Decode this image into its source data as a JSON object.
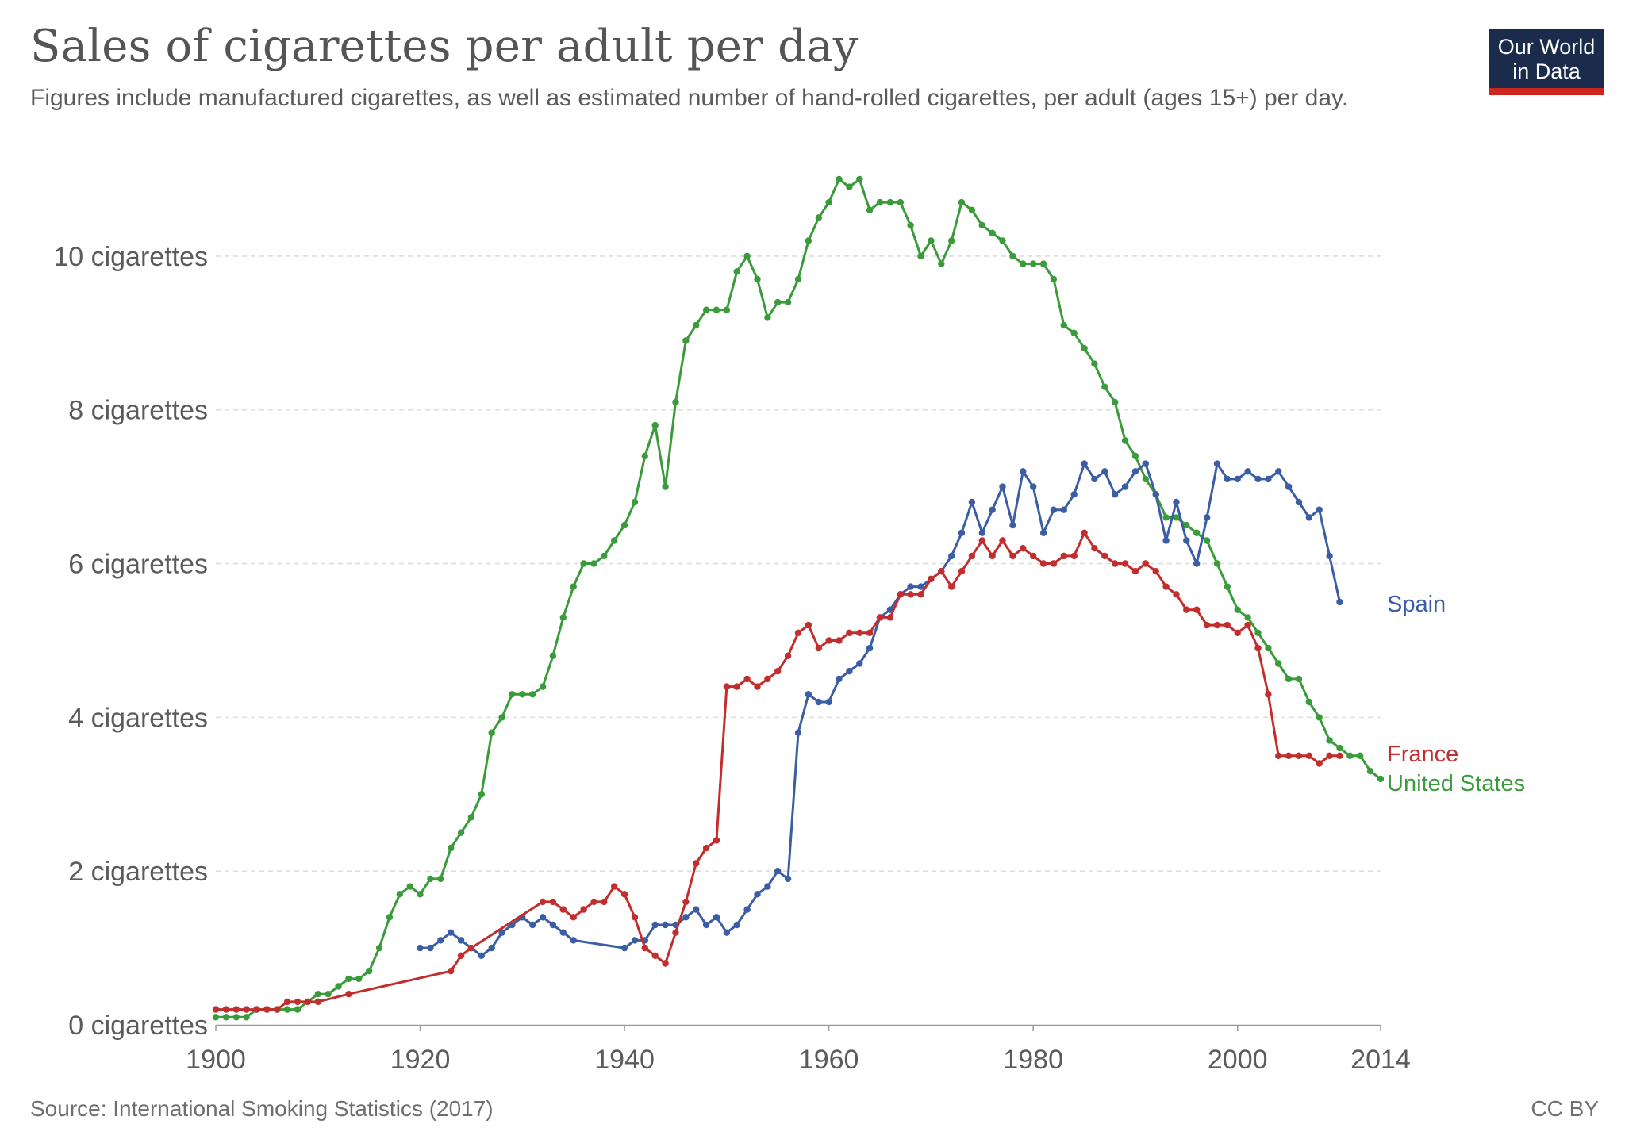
{
  "header": {
    "title": "Sales of cigarettes per adult per day",
    "subtitle": "Figures include manufactured cigarettes, as well as estimated number of hand-rolled cigarettes, per adult (ages 15+) per day."
  },
  "logo": {
    "line1": "Our World",
    "line2": "in Data"
  },
  "footer": {
    "source": "Source: International Smoking Statistics (2017)",
    "license": "CC BY"
  },
  "chart_data": {
    "type": "line",
    "title": "Sales of cigarettes per adult per day",
    "xlim": [
      1900,
      2014
    ],
    "ylim": [
      0,
      11
    ],
    "x_ticks": [
      1900,
      1920,
      1940,
      1960,
      1980,
      2000,
      2014
    ],
    "y_ticks": [
      {
        "value": 0,
        "label": "0 cigarettes"
      },
      {
        "value": 2,
        "label": "2 cigarettes"
      },
      {
        "value": 4,
        "label": "4 cigarettes"
      },
      {
        "value": 6,
        "label": "6 cigarettes"
      },
      {
        "value": 8,
        "label": "8 cigarettes"
      },
      {
        "value": 10,
        "label": "10 cigarettes"
      }
    ],
    "grid": "horizontal dashed",
    "legend": "direct labels at line ends (right)",
    "series": [
      {
        "name": "United States",
        "color": "#3a9b3a",
        "points": [
          [
            1900,
            0.1
          ],
          [
            1901,
            0.1
          ],
          [
            1902,
            0.1
          ],
          [
            1903,
            0.1
          ],
          [
            1904,
            0.2
          ],
          [
            1905,
            0.2
          ],
          [
            1906,
            0.2
          ],
          [
            1907,
            0.2
          ],
          [
            1908,
            0.2
          ],
          [
            1909,
            0.3
          ],
          [
            1910,
            0.4
          ],
          [
            1911,
            0.4
          ],
          [
            1912,
            0.5
          ],
          [
            1913,
            0.6
          ],
          [
            1914,
            0.6
          ],
          [
            1915,
            0.7
          ],
          [
            1916,
            1.0
          ],
          [
            1917,
            1.4
          ],
          [
            1918,
            1.7
          ],
          [
            1919,
            1.8
          ],
          [
            1920,
            1.7
          ],
          [
            1921,
            1.9
          ],
          [
            1922,
            1.9
          ],
          [
            1923,
            2.3
          ],
          [
            1924,
            2.5
          ],
          [
            1925,
            2.7
          ],
          [
            1926,
            3.0
          ],
          [
            1927,
            3.8
          ],
          [
            1928,
            4.0
          ],
          [
            1929,
            4.3
          ],
          [
            1930,
            4.3
          ],
          [
            1931,
            4.3
          ],
          [
            1932,
            4.4
          ],
          [
            1933,
            4.8
          ],
          [
            1934,
            5.3
          ],
          [
            1935,
            5.7
          ],
          [
            1936,
            6.0
          ],
          [
            1937,
            6.0
          ],
          [
            1938,
            6.1
          ],
          [
            1939,
            6.3
          ],
          [
            1940,
            6.5
          ],
          [
            1941,
            6.8
          ],
          [
            1942,
            7.4
          ],
          [
            1943,
            7.8
          ],
          [
            1944,
            7.0
          ],
          [
            1945,
            8.1
          ],
          [
            1946,
            8.9
          ],
          [
            1947,
            9.1
          ],
          [
            1948,
            9.3
          ],
          [
            1949,
            9.3
          ],
          [
            1950,
            9.3
          ],
          [
            1951,
            9.8
          ],
          [
            1952,
            10.0
          ],
          [
            1953,
            9.7
          ],
          [
            1954,
            9.2
          ],
          [
            1955,
            9.4
          ],
          [
            1956,
            9.4
          ],
          [
            1957,
            9.7
          ],
          [
            1958,
            10.2
          ],
          [
            1959,
            10.5
          ],
          [
            1960,
            10.7
          ],
          [
            1961,
            11.0
          ],
          [
            1962,
            10.9
          ],
          [
            1963,
            11.0
          ],
          [
            1964,
            10.6
          ],
          [
            1965,
            10.7
          ],
          [
            1966,
            10.7
          ],
          [
            1967,
            10.7
          ],
          [
            1968,
            10.4
          ],
          [
            1969,
            10.0
          ],
          [
            1970,
            10.2
          ],
          [
            1971,
            9.9
          ],
          [
            1972,
            10.2
          ],
          [
            1973,
            10.7
          ],
          [
            1974,
            10.6
          ],
          [
            1975,
            10.4
          ],
          [
            1976,
            10.3
          ],
          [
            1977,
            10.2
          ],
          [
            1978,
            10.0
          ],
          [
            1979,
            9.9
          ],
          [
            1980,
            9.9
          ],
          [
            1981,
            9.9
          ],
          [
            1982,
            9.7
          ],
          [
            1983,
            9.1
          ],
          [
            1984,
            9.0
          ],
          [
            1985,
            8.8
          ],
          [
            1986,
            8.6
          ],
          [
            1987,
            8.3
          ],
          [
            1988,
            8.1
          ],
          [
            1989,
            7.6
          ],
          [
            1990,
            7.4
          ],
          [
            1991,
            7.1
          ],
          [
            1992,
            6.9
          ],
          [
            1993,
            6.6
          ],
          [
            1994,
            6.6
          ],
          [
            1995,
            6.5
          ],
          [
            1996,
            6.4
          ],
          [
            1997,
            6.3
          ],
          [
            1998,
            6.0
          ],
          [
            1999,
            5.7
          ],
          [
            2000,
            5.4
          ],
          [
            2001,
            5.3
          ],
          [
            2002,
            5.1
          ],
          [
            2003,
            4.9
          ],
          [
            2004,
            4.7
          ],
          [
            2005,
            4.5
          ],
          [
            2006,
            4.5
          ],
          [
            2007,
            4.2
          ],
          [
            2008,
            4.0
          ],
          [
            2009,
            3.7
          ],
          [
            2010,
            3.6
          ],
          [
            2011,
            3.5
          ],
          [
            2012,
            3.5
          ],
          [
            2013,
            3.3
          ],
          [
            2014,
            3.2
          ]
        ]
      },
      {
        "name": "Spain",
        "color": "#3a5da4",
        "points": [
          [
            1920,
            1.0
          ],
          [
            1921,
            1.0
          ],
          [
            1922,
            1.1
          ],
          [
            1923,
            1.2
          ],
          [
            1924,
            1.1
          ],
          [
            1925,
            1.0
          ],
          [
            1926,
            0.9
          ],
          [
            1927,
            1.0
          ],
          [
            1928,
            1.2
          ],
          [
            1929,
            1.3
          ],
          [
            1930,
            1.4
          ],
          [
            1931,
            1.3
          ],
          [
            1932,
            1.4
          ],
          [
            1933,
            1.3
          ],
          [
            1934,
            1.2
          ],
          [
            1935,
            1.1
          ],
          [
            1940,
            1.0
          ],
          [
            1941,
            1.1
          ],
          [
            1942,
            1.1
          ],
          [
            1943,
            1.3
          ],
          [
            1944,
            1.3
          ],
          [
            1945,
            1.3
          ],
          [
            1946,
            1.4
          ],
          [
            1947,
            1.5
          ],
          [
            1948,
            1.3
          ],
          [
            1949,
            1.4
          ],
          [
            1950,
            1.2
          ],
          [
            1951,
            1.3
          ],
          [
            1952,
            1.5
          ],
          [
            1953,
            1.7
          ],
          [
            1954,
            1.8
          ],
          [
            1955,
            2.0
          ],
          [
            1956,
            1.9
          ],
          [
            1957,
            3.8
          ],
          [
            1958,
            4.3
          ],
          [
            1959,
            4.2
          ],
          [
            1960,
            4.2
          ],
          [
            1961,
            4.5
          ],
          [
            1962,
            4.6
          ],
          [
            1963,
            4.7
          ],
          [
            1964,
            4.9
          ],
          [
            1965,
            5.3
          ],
          [
            1966,
            5.4
          ],
          [
            1967,
            5.6
          ],
          [
            1968,
            5.7
          ],
          [
            1969,
            5.7
          ],
          [
            1970,
            5.8
          ],
          [
            1971,
            5.9
          ],
          [
            1972,
            6.1
          ],
          [
            1973,
            6.4
          ],
          [
            1974,
            6.8
          ],
          [
            1975,
            6.4
          ],
          [
            1976,
            6.7
          ],
          [
            1977,
            7.0
          ],
          [
            1978,
            6.5
          ],
          [
            1979,
            7.2
          ],
          [
            1980,
            7.0
          ],
          [
            1981,
            6.4
          ],
          [
            1982,
            6.7
          ],
          [
            1983,
            6.7
          ],
          [
            1984,
            6.9
          ],
          [
            1985,
            7.3
          ],
          [
            1986,
            7.1
          ],
          [
            1987,
            7.2
          ],
          [
            1988,
            6.9
          ],
          [
            1989,
            7.0
          ],
          [
            1990,
            7.2
          ],
          [
            1991,
            7.3
          ],
          [
            1992,
            6.9
          ],
          [
            1993,
            6.3
          ],
          [
            1994,
            6.8
          ],
          [
            1995,
            6.3
          ],
          [
            1996,
            6.0
          ],
          [
            1997,
            6.6
          ],
          [
            1998,
            7.3
          ],
          [
            1999,
            7.1
          ],
          [
            2000,
            7.1
          ],
          [
            2001,
            7.2
          ],
          [
            2002,
            7.1
          ],
          [
            2003,
            7.1
          ],
          [
            2004,
            7.2
          ],
          [
            2005,
            7.0
          ],
          [
            2006,
            6.8
          ],
          [
            2007,
            6.6
          ],
          [
            2008,
            6.7
          ],
          [
            2009,
            6.1
          ],
          [
            2010,
            5.5
          ]
        ]
      },
      {
        "name": "France",
        "color": "#c22d2d",
        "points": [
          [
            1900,
            0.2
          ],
          [
            1901,
            0.2
          ],
          [
            1902,
            0.2
          ],
          [
            1903,
            0.2
          ],
          [
            1904,
            0.2
          ],
          [
            1905,
            0.2
          ],
          [
            1906,
            0.2
          ],
          [
            1907,
            0.3
          ],
          [
            1908,
            0.3
          ],
          [
            1909,
            0.3
          ],
          [
            1910,
            0.3
          ],
          [
            1913,
            0.4
          ],
          [
            1923,
            0.7
          ],
          [
            1924,
            0.9
          ],
          [
            1925,
            1.0
          ],
          [
            1932,
            1.6
          ],
          [
            1933,
            1.6
          ],
          [
            1934,
            1.5
          ],
          [
            1935,
            1.4
          ],
          [
            1936,
            1.5
          ],
          [
            1937,
            1.6
          ],
          [
            1938,
            1.6
          ],
          [
            1939,
            1.8
          ],
          [
            1940,
            1.7
          ],
          [
            1941,
            1.4
          ],
          [
            1942,
            1.0
          ],
          [
            1943,
            0.9
          ],
          [
            1944,
            0.8
          ],
          [
            1945,
            1.2
          ],
          [
            1946,
            1.6
          ],
          [
            1947,
            2.1
          ],
          [
            1948,
            2.3
          ],
          [
            1949,
            2.4
          ],
          [
            1950,
            4.4
          ],
          [
            1951,
            4.4
          ],
          [
            1952,
            4.5
          ],
          [
            1953,
            4.4
          ],
          [
            1954,
            4.5
          ],
          [
            1955,
            4.6
          ],
          [
            1956,
            4.8
          ],
          [
            1957,
            5.1
          ],
          [
            1958,
            5.2
          ],
          [
            1959,
            4.9
          ],
          [
            1960,
            5.0
          ],
          [
            1961,
            5.0
          ],
          [
            1962,
            5.1
          ],
          [
            1963,
            5.1
          ],
          [
            1964,
            5.1
          ],
          [
            1965,
            5.3
          ],
          [
            1966,
            5.3
          ],
          [
            1967,
            5.6
          ],
          [
            1968,
            5.6
          ],
          [
            1969,
            5.6
          ],
          [
            1970,
            5.8
          ],
          [
            1971,
            5.9
          ],
          [
            1972,
            5.7
          ],
          [
            1973,
            5.9
          ],
          [
            1974,
            6.1
          ],
          [
            1975,
            6.3
          ],
          [
            1976,
            6.1
          ],
          [
            1977,
            6.3
          ],
          [
            1978,
            6.1
          ],
          [
            1979,
            6.2
          ],
          [
            1980,
            6.1
          ],
          [
            1981,
            6.0
          ],
          [
            1982,
            6.0
          ],
          [
            1983,
            6.1
          ],
          [
            1984,
            6.1
          ],
          [
            1985,
            6.4
          ],
          [
            1986,
            6.2
          ],
          [
            1987,
            6.1
          ],
          [
            1988,
            6.0
          ],
          [
            1989,
            6.0
          ],
          [
            1990,
            5.9
          ],
          [
            1991,
            6.0
          ],
          [
            1992,
            5.9
          ],
          [
            1993,
            5.7
          ],
          [
            1994,
            5.6
          ],
          [
            1995,
            5.4
          ],
          [
            1996,
            5.4
          ],
          [
            1997,
            5.2
          ],
          [
            1998,
            5.2
          ],
          [
            1999,
            5.2
          ],
          [
            2000,
            5.1
          ],
          [
            2001,
            5.2
          ],
          [
            2002,
            4.9
          ],
          [
            2003,
            4.3
          ],
          [
            2004,
            3.5
          ],
          [
            2005,
            3.5
          ],
          [
            2006,
            3.5
          ],
          [
            2007,
            3.5
          ],
          [
            2008,
            3.4
          ],
          [
            2009,
            3.5
          ],
          [
            2010,
            3.5
          ]
        ]
      }
    ]
  }
}
